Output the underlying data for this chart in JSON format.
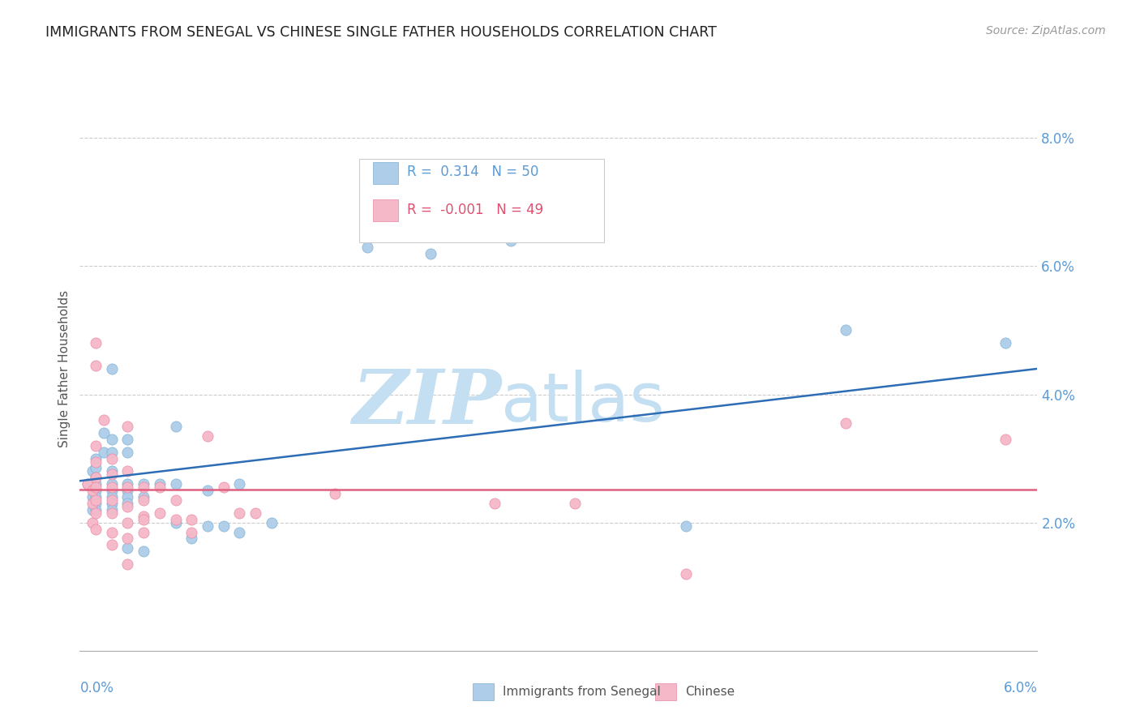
{
  "title": "IMMIGRANTS FROM SENEGAL VS CHINESE SINGLE FATHER HOUSEHOLDS CORRELATION CHART",
  "source": "Source: ZipAtlas.com",
  "ylabel": "Single Father Households",
  "y_ticks": [
    0.0,
    0.02,
    0.04,
    0.06,
    0.08
  ],
  "y_tick_labels": [
    "",
    "2.0%",
    "4.0%",
    "6.0%",
    "8.0%"
  ],
  "x_lim": [
    0.0,
    0.06
  ],
  "y_lim": [
    0.0,
    0.088
  ],
  "legend_entries": [
    {
      "label": "Immigrants from Senegal",
      "R": "0.314",
      "N": "50",
      "color": "#aecde8",
      "edge": "#7aafd4"
    },
    {
      "label": "Chinese",
      "R": "-0.001",
      "N": "49",
      "color": "#f5b8c8",
      "edge": "#e888a4"
    }
  ],
  "blue_line": {
    "x0": 0.0,
    "y0": 0.0265,
    "x1": 0.06,
    "y1": 0.044
  },
  "pink_line": {
    "x0": 0.0,
    "y0": 0.0252,
    "x1": 0.06,
    "y1": 0.0252
  },
  "blue_dots": [
    [
      0.0005,
      0.026
    ],
    [
      0.0008,
      0.028
    ],
    [
      0.0008,
      0.024
    ],
    [
      0.0008,
      0.022
    ],
    [
      0.001,
      0.03
    ],
    [
      0.001,
      0.0285
    ],
    [
      0.001,
      0.027
    ],
    [
      0.001,
      0.026
    ],
    [
      0.001,
      0.025
    ],
    [
      0.001,
      0.024
    ],
    [
      0.001,
      0.023
    ],
    [
      0.001,
      0.022
    ],
    [
      0.0015,
      0.034
    ],
    [
      0.0015,
      0.031
    ],
    [
      0.002,
      0.044
    ],
    [
      0.002,
      0.033
    ],
    [
      0.002,
      0.031
    ],
    [
      0.002,
      0.028
    ],
    [
      0.002,
      0.026
    ],
    [
      0.002,
      0.025
    ],
    [
      0.002,
      0.024
    ],
    [
      0.002,
      0.023
    ],
    [
      0.002,
      0.022
    ],
    [
      0.003,
      0.033
    ],
    [
      0.003,
      0.031
    ],
    [
      0.003,
      0.026
    ],
    [
      0.003,
      0.025
    ],
    [
      0.003,
      0.024
    ],
    [
      0.003,
      0.023
    ],
    [
      0.003,
      0.016
    ],
    [
      0.004,
      0.026
    ],
    [
      0.004,
      0.024
    ],
    [
      0.004,
      0.0155
    ],
    [
      0.005,
      0.026
    ],
    [
      0.006,
      0.035
    ],
    [
      0.006,
      0.026
    ],
    [
      0.006,
      0.02
    ],
    [
      0.007,
      0.0175
    ],
    [
      0.008,
      0.025
    ],
    [
      0.008,
      0.0195
    ],
    [
      0.009,
      0.0195
    ],
    [
      0.01,
      0.026
    ],
    [
      0.01,
      0.0185
    ],
    [
      0.012,
      0.02
    ],
    [
      0.018,
      0.063
    ],
    [
      0.022,
      0.062
    ],
    [
      0.027,
      0.064
    ],
    [
      0.038,
      0.0195
    ],
    [
      0.048,
      0.05
    ],
    [
      0.058,
      0.048
    ]
  ],
  "pink_dots": [
    [
      0.0005,
      0.026
    ],
    [
      0.0008,
      0.025
    ],
    [
      0.0008,
      0.023
    ],
    [
      0.0008,
      0.02
    ],
    [
      0.001,
      0.048
    ],
    [
      0.001,
      0.0445
    ],
    [
      0.001,
      0.032
    ],
    [
      0.001,
      0.0295
    ],
    [
      0.001,
      0.027
    ],
    [
      0.001,
      0.0255
    ],
    [
      0.001,
      0.0235
    ],
    [
      0.001,
      0.0215
    ],
    [
      0.001,
      0.019
    ],
    [
      0.0015,
      0.036
    ],
    [
      0.002,
      0.03
    ],
    [
      0.002,
      0.0275
    ],
    [
      0.002,
      0.0255
    ],
    [
      0.002,
      0.0235
    ],
    [
      0.002,
      0.0215
    ],
    [
      0.002,
      0.0185
    ],
    [
      0.002,
      0.0165
    ],
    [
      0.003,
      0.035
    ],
    [
      0.003,
      0.028
    ],
    [
      0.003,
      0.0255
    ],
    [
      0.003,
      0.0225
    ],
    [
      0.003,
      0.02
    ],
    [
      0.003,
      0.0175
    ],
    [
      0.003,
      0.0135
    ],
    [
      0.004,
      0.0255
    ],
    [
      0.004,
      0.021
    ],
    [
      0.004,
      0.0235
    ],
    [
      0.004,
      0.0205
    ],
    [
      0.004,
      0.0185
    ],
    [
      0.005,
      0.0255
    ],
    [
      0.005,
      0.0215
    ],
    [
      0.006,
      0.0235
    ],
    [
      0.006,
      0.0205
    ],
    [
      0.007,
      0.0205
    ],
    [
      0.007,
      0.0185
    ],
    [
      0.008,
      0.0335
    ],
    [
      0.009,
      0.0255
    ],
    [
      0.01,
      0.0215
    ],
    [
      0.011,
      0.0215
    ],
    [
      0.016,
      0.0245
    ],
    [
      0.026,
      0.023
    ],
    [
      0.031,
      0.023
    ],
    [
      0.038,
      0.012
    ],
    [
      0.048,
      0.0355
    ],
    [
      0.058,
      0.033
    ]
  ],
  "background_color": "#ffffff",
  "grid_color": "#cccccc",
  "title_color": "#222222",
  "axis_color": "#5b9bd5",
  "watermark_zip": "ZIP",
  "watermark_atlas": "atlas",
  "watermark_color_zip": "#c5dff2",
  "watermark_color_atlas": "#c5dff2"
}
